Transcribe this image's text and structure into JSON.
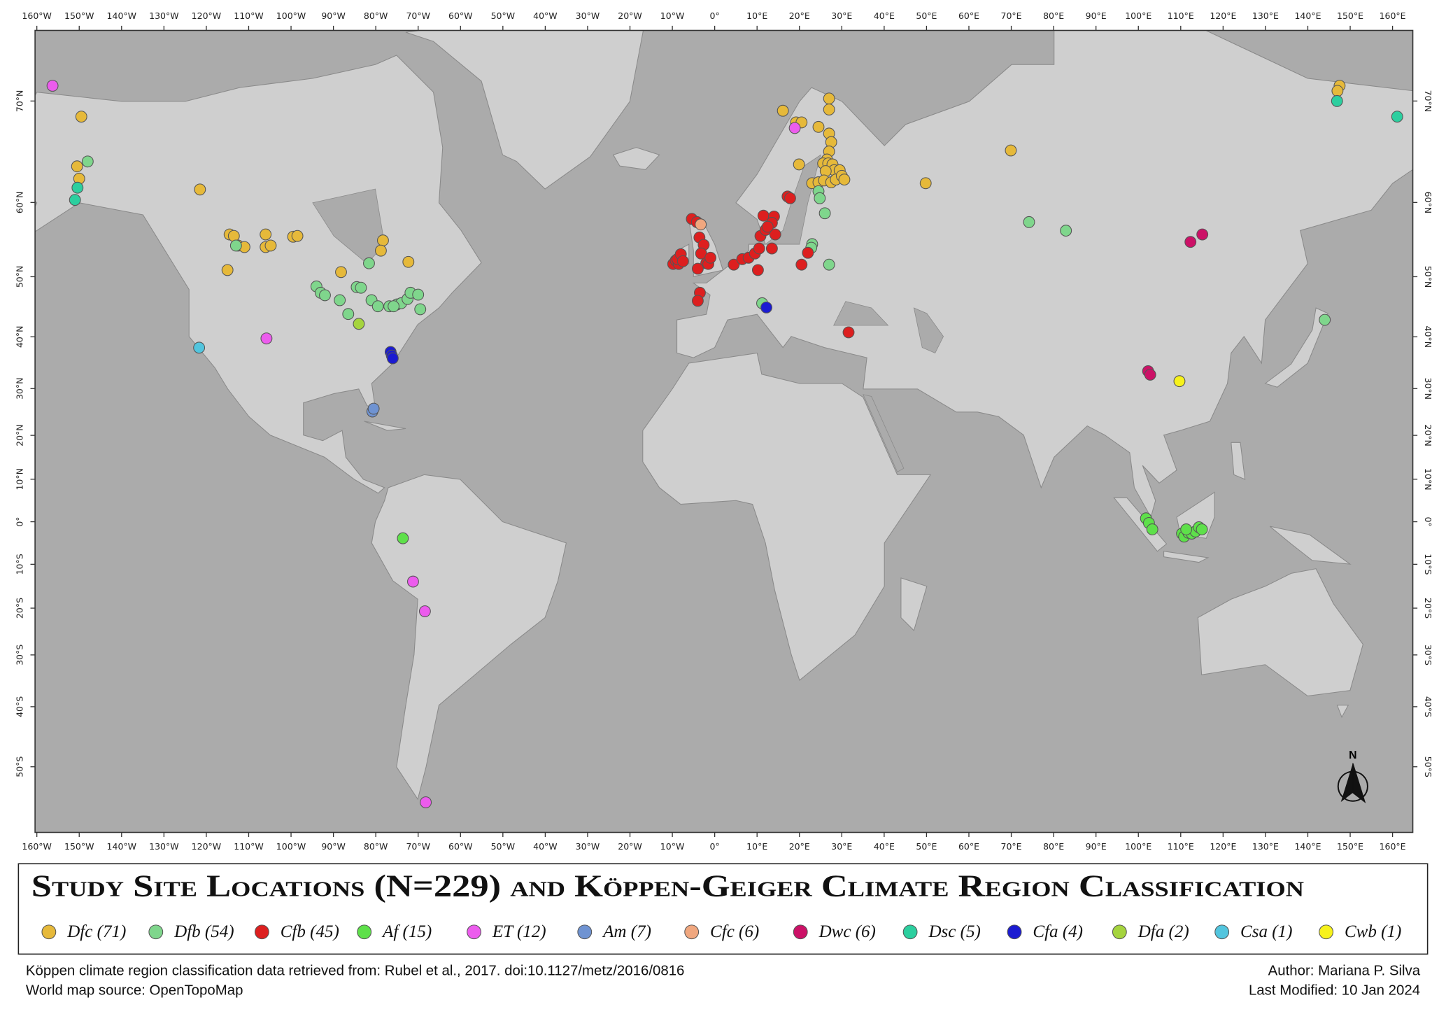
{
  "title": "Study Site Locations (N=229) and Köppen-Geiger Climate Region Classification",
  "north_label": "N",
  "lon_ticks": [
    {
      "value": -160,
      "label": "160°W"
    },
    {
      "value": -150,
      "label": "150°W"
    },
    {
      "value": -140,
      "label": "140°W"
    },
    {
      "value": -130,
      "label": "130°W"
    },
    {
      "value": -120,
      "label": "120°W"
    },
    {
      "value": -110,
      "label": "110°W"
    },
    {
      "value": -100,
      "label": "100°W"
    },
    {
      "value": -90,
      "label": "90°W"
    },
    {
      "value": -80,
      "label": "80°W"
    },
    {
      "value": -70,
      "label": "70°W"
    },
    {
      "value": -60,
      "label": "60°W"
    },
    {
      "value": -50,
      "label": "50°W"
    },
    {
      "value": -40,
      "label": "40°W"
    },
    {
      "value": -30,
      "label": "30°W"
    },
    {
      "value": -20,
      "label": "20°W"
    },
    {
      "value": -10,
      "label": "10°W"
    },
    {
      "value": 0,
      "label": "0°"
    },
    {
      "value": 10,
      "label": "10°E"
    },
    {
      "value": 20,
      "label": "20°E"
    },
    {
      "value": 30,
      "label": "30°E"
    },
    {
      "value": 40,
      "label": "40°E"
    },
    {
      "value": 50,
      "label": "50°E"
    },
    {
      "value": 60,
      "label": "60°E"
    },
    {
      "value": 70,
      "label": "70°E"
    },
    {
      "value": 80,
      "label": "80°E"
    },
    {
      "value": 90,
      "label": "90°E"
    },
    {
      "value": 100,
      "label": "100°E"
    },
    {
      "value": 110,
      "label": "110°E"
    },
    {
      "value": 120,
      "label": "120°E"
    },
    {
      "value": 130,
      "label": "130°E"
    },
    {
      "value": 140,
      "label": "140°E"
    },
    {
      "value": 150,
      "label": "150°E"
    },
    {
      "value": 160,
      "label": "160°E"
    }
  ],
  "lat_ticks": [
    {
      "value": 70,
      "label": "70°N"
    },
    {
      "value": 60,
      "label": "60°N"
    },
    {
      "value": 50,
      "label": "50°N"
    },
    {
      "value": 40,
      "label": "40°N"
    },
    {
      "value": 30,
      "label": "30°N"
    },
    {
      "value": 20,
      "label": "20°N"
    },
    {
      "value": 10,
      "label": "10°N"
    },
    {
      "value": 0,
      "label": "0°"
    },
    {
      "value": -10,
      "label": "10°S"
    },
    {
      "value": -20,
      "label": "20°S"
    },
    {
      "value": -30,
      "label": "30°S"
    },
    {
      "value": -40,
      "label": "40°S"
    },
    {
      "value": -50,
      "label": "50°S"
    }
  ],
  "legend": [
    {
      "label": "Dfc (71)",
      "color": "#e6b93a",
      "sites": [
        [
          -149.5,
          68.7
        ],
        [
          -150,
          62.7
        ],
        [
          -150.5,
          64
        ],
        [
          -121.5,
          61.5
        ],
        [
          -114.5,
          56
        ],
        [
          -113.5,
          55.8
        ],
        [
          -112.5,
          54.5
        ],
        [
          -111,
          54.3
        ],
        [
          -115,
          51
        ],
        [
          -106,
          56
        ],
        [
          -106,
          54.3
        ],
        [
          -104.8,
          54.5
        ],
        [
          -99.5,
          55.7
        ],
        [
          -98.5,
          55.8
        ],
        [
          -78.3,
          55.2
        ],
        [
          -78.8,
          53.8
        ],
        [
          -88.2,
          50.7
        ],
        [
          -72.3,
          52.2
        ],
        [
          16.1,
          69.2
        ],
        [
          19.2,
          68.2
        ],
        [
          20.5,
          68.2
        ],
        [
          27,
          70.2
        ],
        [
          27,
          69.3
        ],
        [
          24.5,
          67.8
        ],
        [
          27,
          67.2
        ],
        [
          27.5,
          66.4
        ],
        [
          27,
          65.5
        ],
        [
          26.5,
          64.7
        ],
        [
          25.6,
          64.3
        ],
        [
          26.8,
          64.3
        ],
        [
          27.8,
          64.2
        ],
        [
          28.2,
          63.6
        ],
        [
          26.2,
          63.5
        ],
        [
          29.5,
          63.6
        ],
        [
          19.9,
          64.2
        ],
        [
          23,
          62.2
        ],
        [
          24.5,
          62.3
        ],
        [
          25.8,
          62.5
        ],
        [
          27.5,
          62.3
        ],
        [
          28.6,
          62.6
        ],
        [
          30,
          63
        ],
        [
          30.6,
          62.6
        ],
        [
          49.8,
          62.2
        ],
        [
          69.9,
          65.6
        ],
        [
          147.5,
          71.2
        ],
        [
          147,
          70.8
        ]
      ]
    },
    {
      "label": "Dfb (54)",
      "color": "#7fd68c",
      "sites": [
        [
          -148,
          64.5
        ],
        [
          -113,
          54.5
        ],
        [
          -81.6,
          52
        ],
        [
          -94,
          48.5
        ],
        [
          -93,
          47.5
        ],
        [
          -92,
          47.1
        ],
        [
          -88.5,
          46.3
        ],
        [
          -86.5,
          44
        ],
        [
          -84.5,
          48.4
        ],
        [
          -83.5,
          48.3
        ],
        [
          -81,
          46.3
        ],
        [
          -79.5,
          45.3
        ],
        [
          -76.8,
          45.3
        ],
        [
          -75,
          45.6
        ],
        [
          -74,
          45.8
        ],
        [
          -72.5,
          46.5
        ],
        [
          -71.8,
          47.5
        ],
        [
          -70,
          47.2
        ],
        [
          -69.5,
          44.8
        ],
        [
          -75.8,
          45.3
        ],
        [
          11.2,
          45.8
        ],
        [
          24.5,
          61.3
        ],
        [
          24.8,
          60.5
        ],
        [
          23,
          54.7
        ],
        [
          22.8,
          54.2
        ],
        [
          26,
          58.7
        ],
        [
          27,
          51.8
        ],
        [
          74.2,
          57.6
        ],
        [
          82.9,
          56.5
        ],
        [
          144,
          43
        ]
      ]
    },
    {
      "label": "Cfb (45)",
      "color": "#dd1f1f",
      "sites": [
        [
          -9.8,
          51.9
        ],
        [
          -9.2,
          52.4
        ],
        [
          -8.5,
          51.9
        ],
        [
          -8.8,
          52.6
        ],
        [
          -8,
          53.3
        ],
        [
          -7.5,
          52.3
        ],
        [
          -5.4,
          58
        ],
        [
          -4.2,
          57.6
        ],
        [
          -3.6,
          55.6
        ],
        [
          -2.6,
          54.6
        ],
        [
          -3.2,
          53.4
        ],
        [
          -2,
          52
        ],
        [
          -4,
          51.2
        ],
        [
          -1.5,
          51.9
        ],
        [
          -1,
          52.8
        ],
        [
          -3.5,
          47.5
        ],
        [
          -4,
          46.2
        ],
        [
          4.5,
          51.8
        ],
        [
          6.5,
          52.6
        ],
        [
          8,
          52.8
        ],
        [
          9.5,
          53.4
        ],
        [
          10.5,
          54.1
        ],
        [
          10.8,
          55.8
        ],
        [
          10.2,
          51
        ],
        [
          12,
          56.6
        ],
        [
          11.5,
          58.4
        ],
        [
          14,
          58.3
        ],
        [
          13.5,
          57.5
        ],
        [
          14.3,
          56
        ],
        [
          13.5,
          54.1
        ],
        [
          17.2,
          60.7
        ],
        [
          17.8,
          60.5
        ],
        [
          22,
          53.5
        ],
        [
          20.5,
          51.8
        ],
        [
          31.6,
          40.8
        ],
        [
          12.5,
          57
        ]
      ]
    },
    {
      "label": "Af (15)",
      "color": "#5ee04a",
      "sites": [
        [
          -73.6,
          -3.9
        ],
        [
          101.8,
          0.8
        ],
        [
          102.5,
          -0.3
        ],
        [
          103.3,
          -1.8
        ],
        [
          110.3,
          -2.8
        ],
        [
          110.8,
          -3.5
        ],
        [
          111.8,
          -2.6
        ],
        [
          112.6,
          -2.8
        ],
        [
          113.5,
          -2.3
        ],
        [
          114.3,
          -1.3
        ],
        [
          115,
          -1.8
        ],
        [
          111.3,
          -1.8
        ]
      ]
    },
    {
      "label": "ET (12)",
      "color": "#ec5ced",
      "sites": [
        [
          -156.3,
          71.2
        ],
        [
          -105.8,
          39.7
        ],
        [
          -71.2,
          -14
        ],
        [
          -68.4,
          -20.7
        ],
        [
          -68.2,
          -55.1
        ],
        [
          18.9,
          67.7
        ]
      ]
    },
    {
      "label": "Am (7)",
      "color": "#6f93d2",
      "sites": [
        [
          -80.8,
          25.2
        ],
        [
          -80.5,
          25.8
        ]
      ]
    },
    {
      "label": "Cfc (6)",
      "color": "#f0a77f",
      "sites": [
        [
          -3.3,
          57.3
        ]
      ]
    },
    {
      "label": "Dwc (6)",
      "color": "#cc1167",
      "sites": [
        [
          112.3,
          55
        ],
        [
          115.1,
          56
        ],
        [
          102.3,
          33.5
        ],
        [
          102.8,
          32.8
        ]
      ]
    },
    {
      "label": "Dsc (5)",
      "color": "#2ccf9f",
      "sites": [
        [
          -150.4,
          61.7
        ],
        [
          -151,
          60.3
        ],
        [
          146.9,
          70
        ],
        [
          161.1,
          68.7
        ]
      ]
    },
    {
      "label": "Cfa (4)",
      "color": "#1b1bd1",
      "sites": [
        [
          -76.5,
          37.2
        ],
        [
          -76.2,
          36.5
        ],
        [
          -76,
          36
        ],
        [
          12.2,
          45.1
        ]
      ]
    },
    {
      "label": "Dfa (2)",
      "color": "#a5d43e",
      "sites": [
        [
          -84,
          42.3
        ]
      ]
    },
    {
      "label": "Csa (1)",
      "color": "#52c5de",
      "sites": [
        [
          -121.7,
          38
        ]
      ]
    },
    {
      "label": "Cwb (1)",
      "color": "#f7f21b",
      "sites": [
        [
          109.7,
          31.5
        ]
      ]
    }
  ],
  "credits": {
    "source": "Köppen climate region classification data retrieved from: Rubel et al., 2017. doi:10.1127/metz/2016/0816",
    "basemap": "World map source: OpenTopoMap",
    "author": "Author: Mariana P. Silva",
    "modified": "Last Modified: 10 Jan 2024"
  }
}
